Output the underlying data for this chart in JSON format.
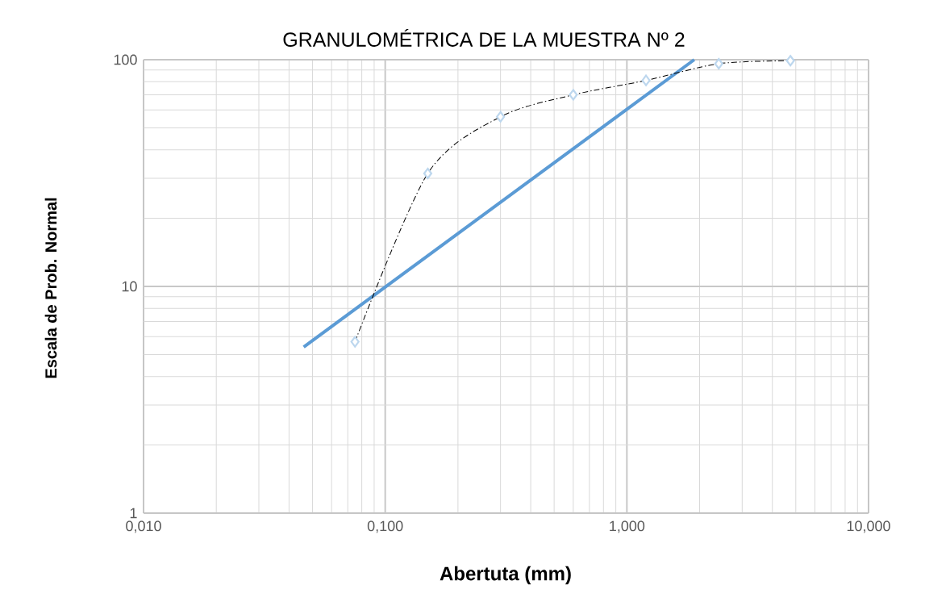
{
  "chart_data": {
    "type": "scatter",
    "title": "GRANULOMÉTRICA DE LA MUESTRA Nº 2",
    "xlabel": "Abertuta (mm)",
    "ylabel": "Escala de Prob. Normal",
    "log": "xy",
    "grid": true,
    "xlim": [
      0.01,
      10
    ],
    "ylim": [
      1,
      100
    ],
    "xticks": [
      {
        "value": 0.01,
        "label": "0,010"
      },
      {
        "value": 0.1,
        "label": "0,100"
      },
      {
        "value": 1,
        "label": "1,000"
      },
      {
        "value": 10,
        "label": "10,000"
      }
    ],
    "yticks": [
      1,
      10,
      100
    ],
    "series": [
      {
        "type": "line",
        "color": "#5b9bd5",
        "line_style": "solid",
        "marker": "none",
        "x": [
          0.046,
          1.9
        ],
        "values": [
          5.4,
          100
        ]
      },
      {
        "type": "line",
        "color": "#000000",
        "line_style": "dashed",
        "marker": "none",
        "x": [
          0.075,
          0.15,
          0.3,
          0.6,
          1.2,
          2.4,
          4.75
        ],
        "values": [
          5.7,
          31.5,
          56,
          70,
          81,
          96,
          99
        ]
      },
      {
        "type": "scatter",
        "color": "#bdd7ee",
        "marker": "diamond",
        "x": [
          0.075,
          0.15,
          0.3,
          0.6,
          1.2,
          2.4,
          4.75
        ],
        "values": [
          5.7,
          31.5,
          56,
          70,
          81,
          96,
          99
        ]
      }
    ]
  }
}
